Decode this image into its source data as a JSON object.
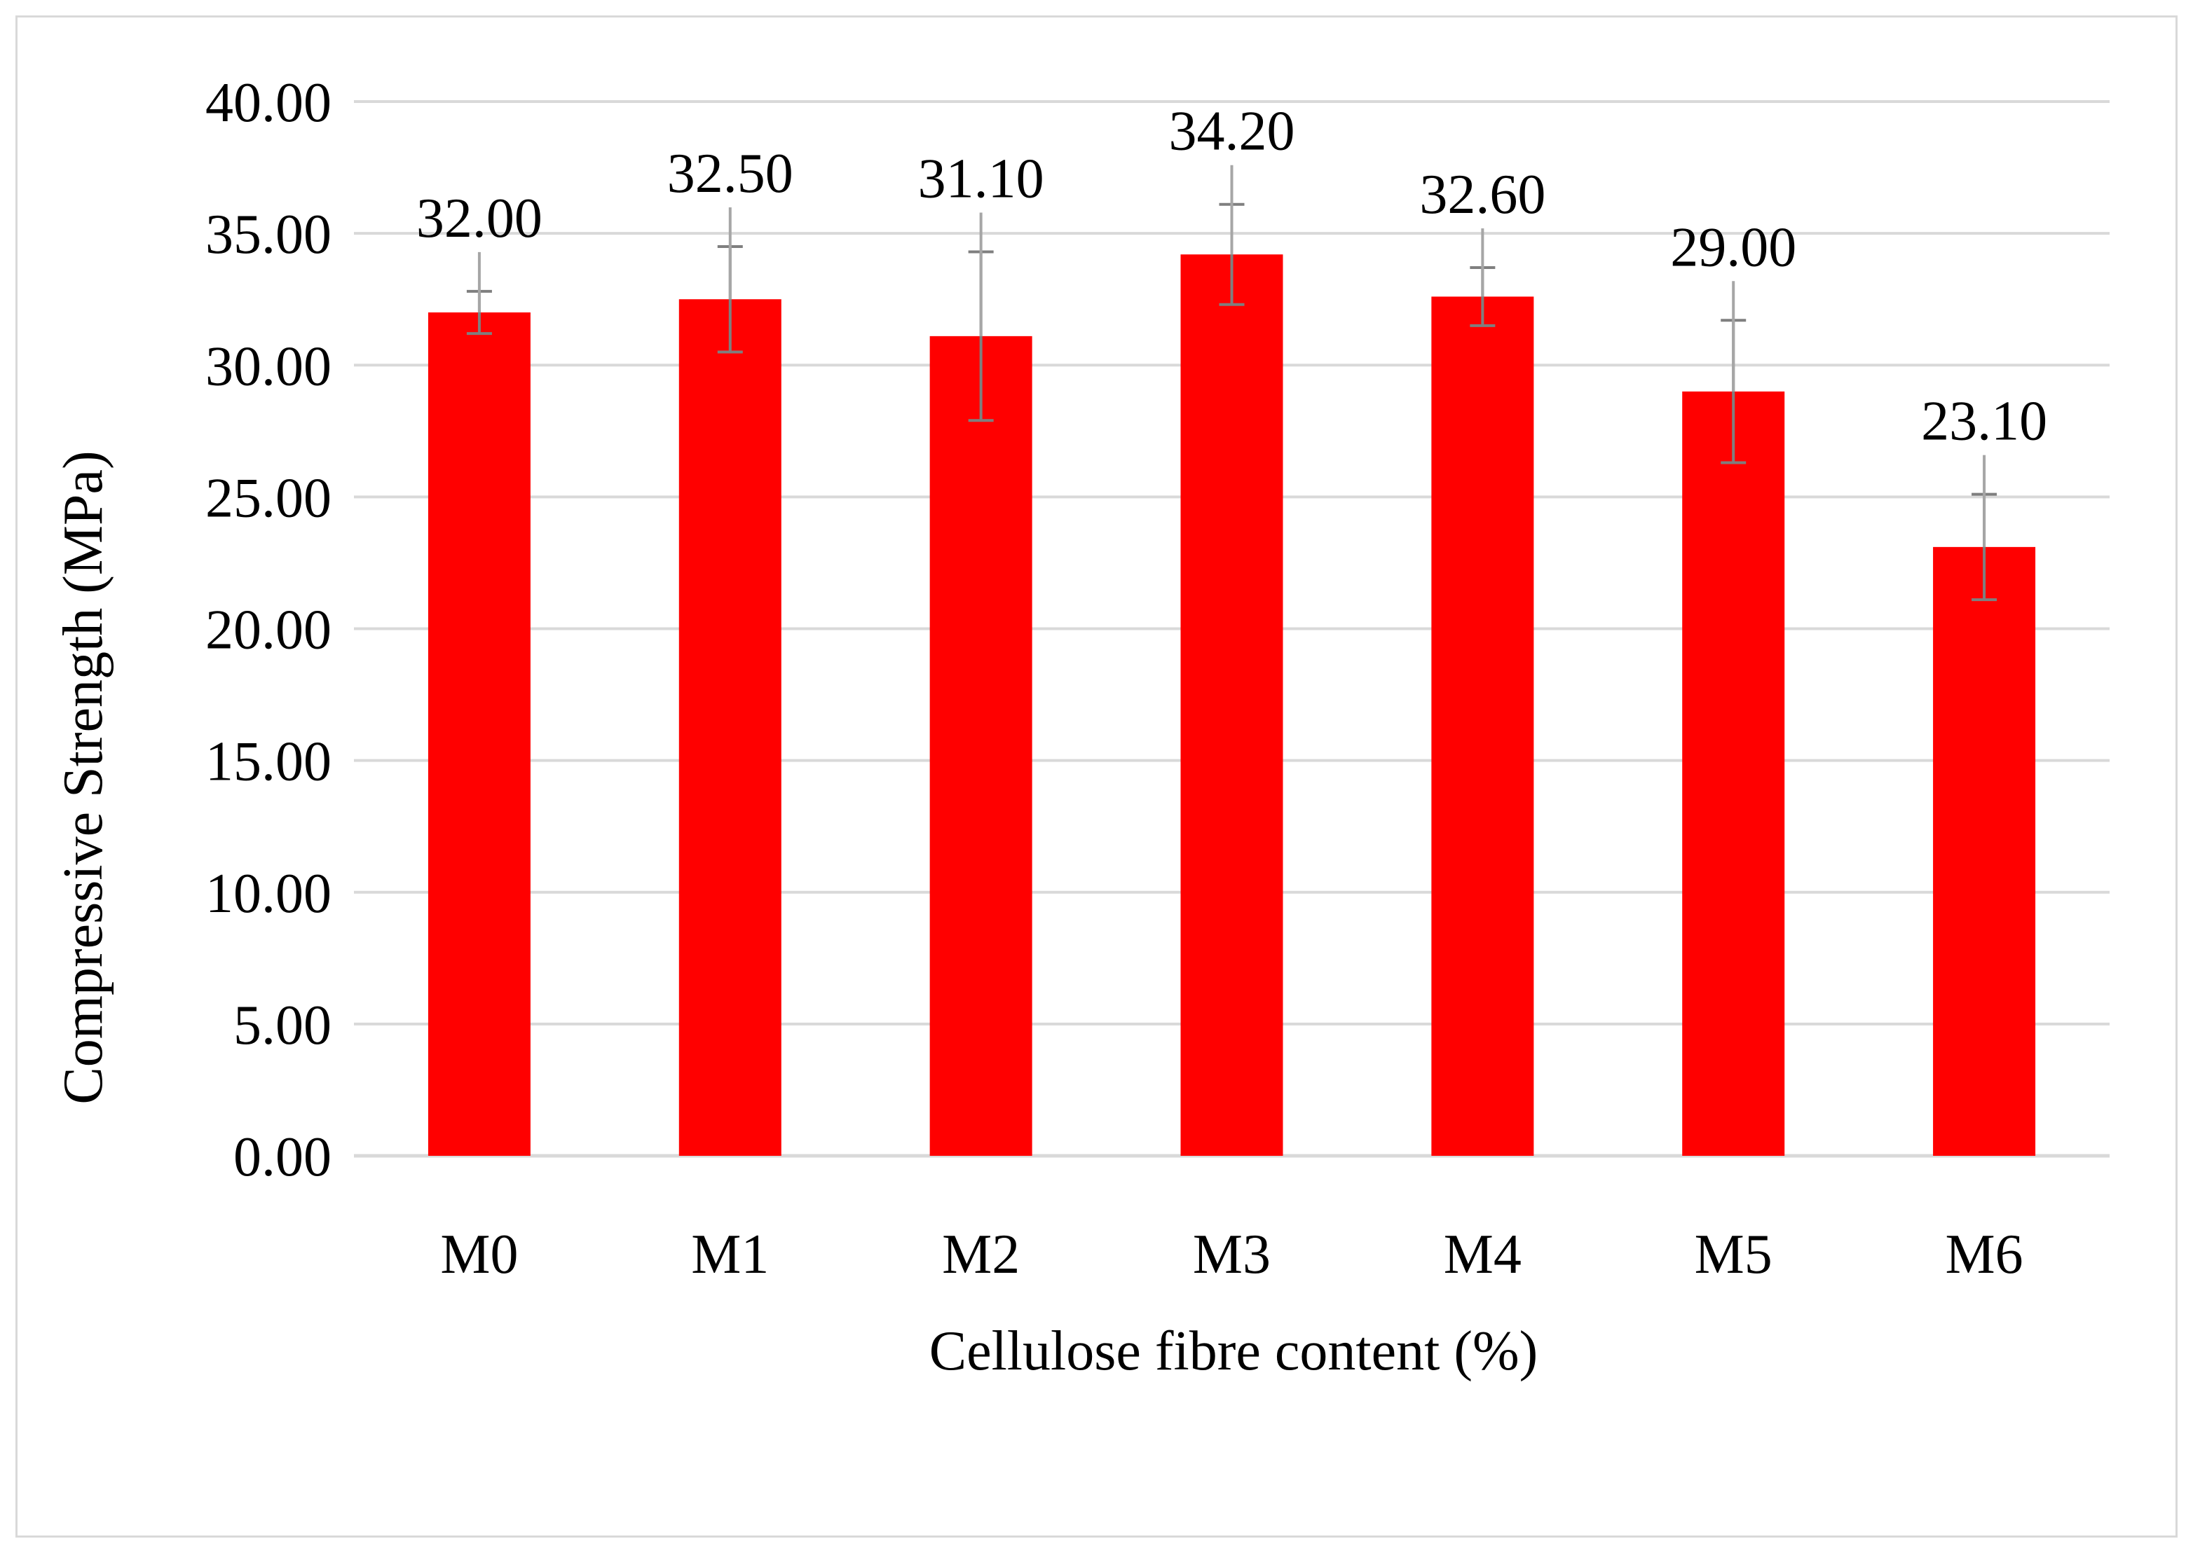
{
  "chart_data": {
    "type": "bar",
    "title": "",
    "xlabel": "Cellulose fibre content (%)",
    "ylabel": "Compressive Strength (MPa)",
    "ylim": [
      0,
      40
    ],
    "yticks": [
      "0.00",
      "5.00",
      "10.00",
      "15.00",
      "20.00",
      "25.00",
      "30.00",
      "35.00",
      "40.00"
    ],
    "categories": [
      "M0",
      "M1",
      "M2",
      "M3",
      "M4",
      "M5",
      "M6"
    ],
    "values": [
      32.0,
      32.5,
      31.1,
      34.2,
      32.6,
      29.0,
      23.1
    ],
    "value_labels": [
      "32.00",
      "32.50",
      "31.10",
      "34.20",
      "32.60",
      "29.00",
      "23.10"
    ],
    "error_bars": [
      {
        "low": 31.2,
        "high": 32.8
      },
      {
        "low": 30.5,
        "high": 34.5
      },
      {
        "low": 27.9,
        "high": 34.3
      },
      {
        "low": 32.3,
        "high": 36.1
      },
      {
        "low": 31.5,
        "high": 33.7
      },
      {
        "low": 26.3,
        "high": 31.7
      },
      {
        "low": 21.1,
        "high": 25.1
      }
    ],
    "grid": true,
    "legend": "none",
    "colors": {
      "bar": "#ff0000",
      "grid": "#d9d9d9",
      "error_bar": "#7f7f7f",
      "leader_line": "#a6a6a6"
    }
  }
}
